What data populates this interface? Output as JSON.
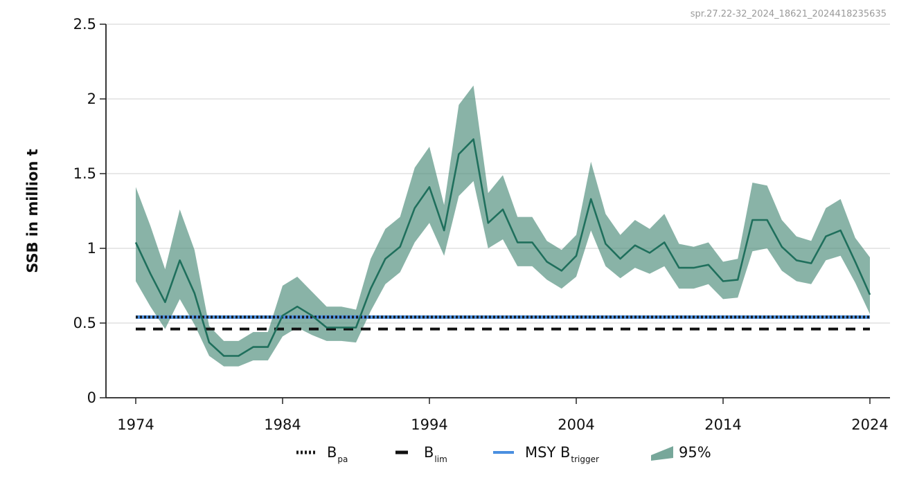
{
  "watermark": "spr.27.22-32_2024_18621_2024418235635",
  "chart_data": {
    "type": "line",
    "title": "",
    "xlabel": "",
    "ylabel": "SSB in million t",
    "xlim": [
      1974,
      2024
    ],
    "ylim": [
      0,
      2.5
    ],
    "x_ticks": [
      1974,
      1984,
      1994,
      2004,
      2014,
      2024
    ],
    "x_tick_labels": [
      "1974",
      "1984",
      "1994",
      "2004",
      "2014",
      "2024"
    ],
    "y_ticks": [
      0,
      0.5,
      1,
      1.5,
      2,
      2.5
    ],
    "y_tick_labels": [
      "0",
      "0.5",
      "1",
      "1.5",
      "2",
      "2.5"
    ],
    "grid": "horizontal",
    "legend_position": "bottom",
    "colors": {
      "ssb_line": "#1f6f5c",
      "band_fill": "#4a8a78",
      "b_pa": "#1a1a1a",
      "b_lim": "#111111",
      "msy_btrigger": "#4a8fe0"
    },
    "x": [
      1974,
      1975,
      1976,
      1977,
      1978,
      1979,
      1980,
      1981,
      1982,
      1983,
      1984,
      1985,
      1986,
      1987,
      1988,
      1989,
      1990,
      1991,
      1992,
      1993,
      1994,
      1995,
      1996,
      1997,
      1998,
      1999,
      2000,
      2001,
      2002,
      2003,
      2004,
      2005,
      2006,
      2007,
      2008,
      2009,
      2010,
      2011,
      2012,
      2013,
      2014,
      2015,
      2016,
      2017,
      2018,
      2019,
      2020,
      2021,
      2022,
      2023,
      2024
    ],
    "series": [
      {
        "key": "ssb",
        "type": "line",
        "values": [
          1.04,
          0.83,
          0.64,
          0.92,
          0.7,
          0.37,
          0.28,
          0.28,
          0.34,
          0.34,
          0.55,
          0.61,
          0.55,
          0.47,
          0.47,
          0.47,
          0.73,
          0.93,
          1.01,
          1.27,
          1.41,
          1.12,
          1.63,
          1.73,
          1.17,
          1.26,
          1.04,
          1.04,
          0.91,
          0.85,
          0.95,
          1.33,
          1.03,
          0.93,
          1.02,
          0.97,
          1.04,
          0.87,
          0.87,
          0.89,
          0.78,
          0.79,
          1.19,
          1.19,
          1.01,
          0.92,
          0.9,
          1.08,
          1.12,
          0.91,
          0.69
        ]
      },
      {
        "key": "ci_upper",
        "values": [
          1.41,
          1.15,
          0.86,
          1.26,
          0.99,
          0.48,
          0.38,
          0.38,
          0.44,
          0.44,
          0.75,
          0.81,
          0.71,
          0.61,
          0.61,
          0.59,
          0.93,
          1.13,
          1.21,
          1.54,
          1.68,
          1.29,
          1.96,
          2.09,
          1.37,
          1.49,
          1.21,
          1.21,
          1.05,
          0.99,
          1.09,
          1.58,
          1.23,
          1.09,
          1.19,
          1.13,
          1.23,
          1.03,
          1.01,
          1.04,
          0.91,
          0.93,
          1.44,
          1.42,
          1.19,
          1.08,
          1.05,
          1.27,
          1.33,
          1.07,
          0.94
        ]
      },
      {
        "key": "ci_lower",
        "values": [
          0.78,
          0.61,
          0.46,
          0.66,
          0.49,
          0.28,
          0.21,
          0.21,
          0.25,
          0.25,
          0.41,
          0.47,
          0.42,
          0.38,
          0.38,
          0.37,
          0.58,
          0.76,
          0.84,
          1.04,
          1.17,
          0.95,
          1.35,
          1.45,
          1.0,
          1.06,
          0.88,
          0.88,
          0.79,
          0.73,
          0.81,
          1.12,
          0.88,
          0.8,
          0.87,
          0.83,
          0.88,
          0.73,
          0.73,
          0.76,
          0.66,
          0.67,
          0.98,
          1.0,
          0.85,
          0.78,
          0.76,
          0.92,
          0.95,
          0.77,
          0.56
        ]
      }
    ],
    "reference_lines": [
      {
        "key": "b_pa",
        "value": 0.54,
        "style": "dotted"
      },
      {
        "key": "b_lim",
        "value": 0.46,
        "style": "dashed"
      },
      {
        "key": "msy_btrigger",
        "value": 0.54,
        "style": "solid"
      }
    ],
    "legend": [
      {
        "key": "b_pa",
        "label": "B",
        "sub": "pa",
        "style": "dotted"
      },
      {
        "key": "b_lim",
        "label": "B",
        "sub": "lim",
        "style": "dashed"
      },
      {
        "key": "msy_btrigger",
        "label": "MSY B",
        "sub": "trigger",
        "style": "solid"
      },
      {
        "key": "band",
        "label": "95%",
        "sub": "",
        "style": "band"
      }
    ]
  }
}
